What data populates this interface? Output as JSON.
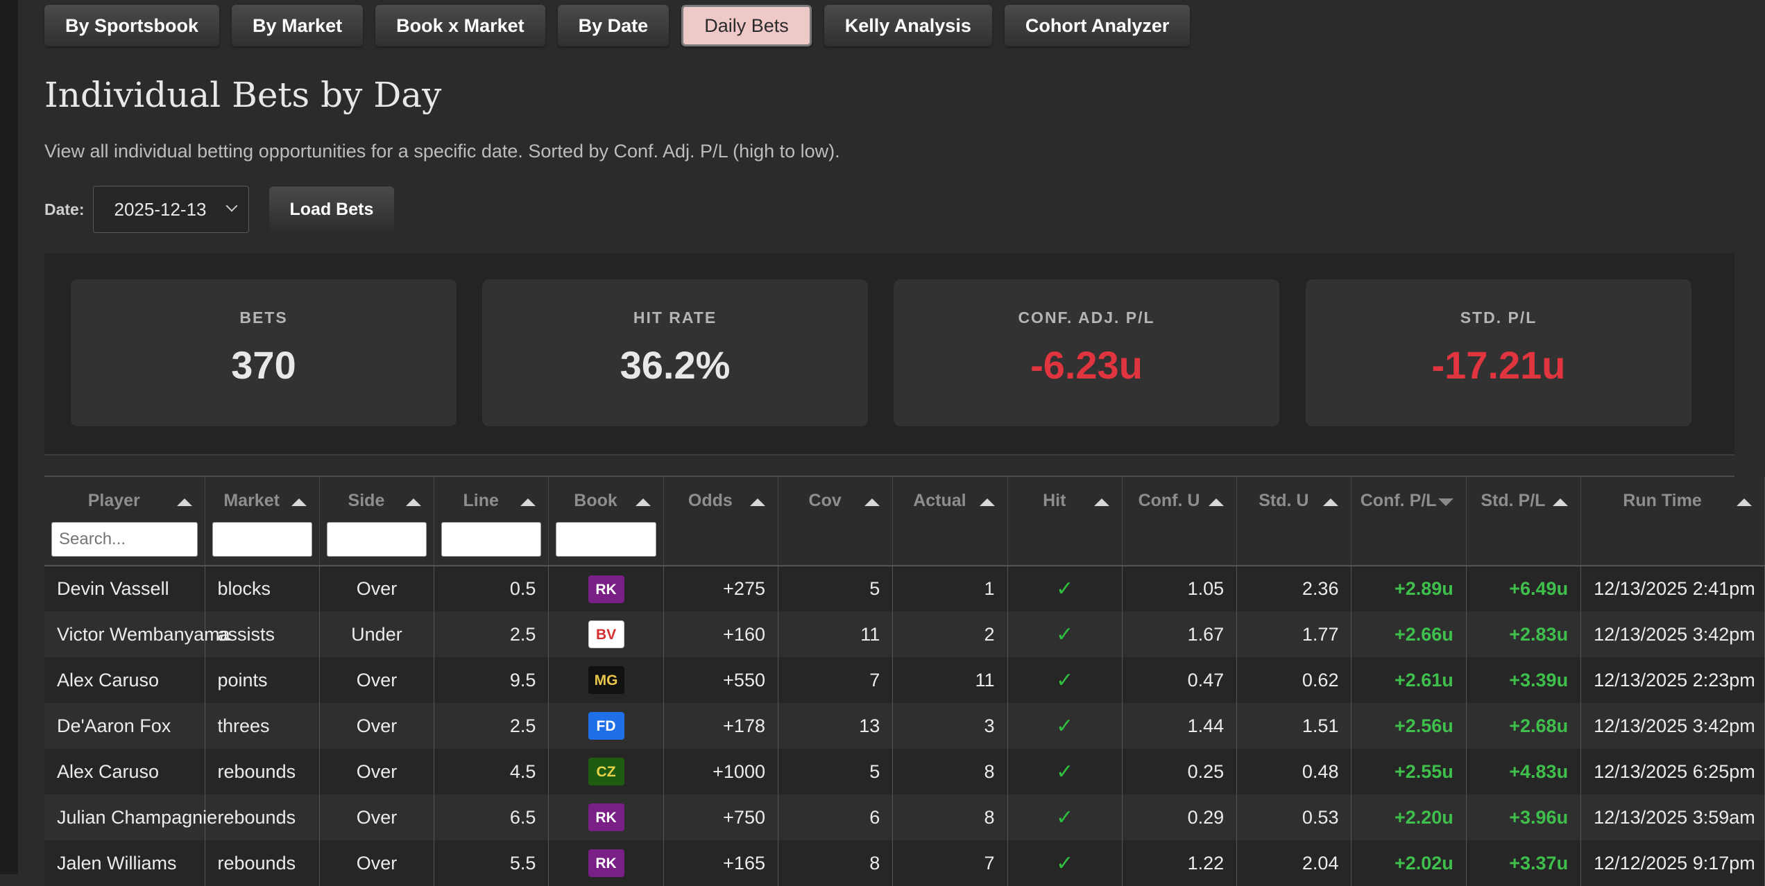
{
  "tabs": [
    {
      "label": "By Sportsbook",
      "active": false
    },
    {
      "label": "By Market",
      "active": false
    },
    {
      "label": "Book x Market",
      "active": false
    },
    {
      "label": "By Date",
      "active": false
    },
    {
      "label": "Daily Bets",
      "active": true
    },
    {
      "label": "Kelly Analysis",
      "active": false
    },
    {
      "label": "Cohort Analyzer",
      "active": false
    }
  ],
  "header": {
    "title": "Individual Bets by Day",
    "subtitle": "View all individual betting opportunities for a specific date. Sorted by Conf. Adj. P/L (high to low)."
  },
  "controls": {
    "date_label": "Date:",
    "date_value": "2025-12-13",
    "load_label": "Load Bets"
  },
  "stats": [
    {
      "label": "BETS",
      "value": "370",
      "negative": false
    },
    {
      "label": "HIT RATE",
      "value": "36.2%",
      "negative": false
    },
    {
      "label": "CONF. ADJ. P/L",
      "value": "-6.23u",
      "negative": true
    },
    {
      "label": "STD. P/L",
      "value": "-17.21u",
      "negative": true
    }
  ],
  "table": {
    "search_placeholder": "Search...",
    "columns": [
      "Player",
      "Market",
      "Side",
      "Line",
      "Book",
      "Odds",
      "Cov",
      "Actual",
      "Hit",
      "Conf. U",
      "Std. U",
      "Conf. P/L",
      "Std. P/L",
      "Run Time"
    ],
    "rows": [
      {
        "player": "Devin Vassell",
        "market": "blocks",
        "side": "Over",
        "line": "0.5",
        "book": "RK",
        "odds": "+275",
        "cov": "5",
        "actual": "1",
        "hit": "✓",
        "conf_u": "1.05",
        "std_u": "2.36",
        "conf_pl": "+2.89u",
        "std_pl": "+6.49u",
        "run_time": "12/13/2025 2:41pm"
      },
      {
        "player": "Victor Wembanyama",
        "market": "assists",
        "side": "Under",
        "line": "2.5",
        "book": "BV",
        "odds": "+160",
        "cov": "11",
        "actual": "2",
        "hit": "✓",
        "conf_u": "1.67",
        "std_u": "1.77",
        "conf_pl": "+2.66u",
        "std_pl": "+2.83u",
        "run_time": "12/13/2025 3:42pm"
      },
      {
        "player": "Alex Caruso",
        "market": "points",
        "side": "Over",
        "line": "9.5",
        "book": "MG",
        "odds": "+550",
        "cov": "7",
        "actual": "11",
        "hit": "✓",
        "conf_u": "0.47",
        "std_u": "0.62",
        "conf_pl": "+2.61u",
        "std_pl": "+3.39u",
        "run_time": "12/13/2025 2:23pm"
      },
      {
        "player": "De'Aaron Fox",
        "market": "threes",
        "side": "Over",
        "line": "2.5",
        "book": "FD",
        "odds": "+178",
        "cov": "13",
        "actual": "3",
        "hit": "✓",
        "conf_u": "1.44",
        "std_u": "1.51",
        "conf_pl": "+2.56u",
        "std_pl": "+2.68u",
        "run_time": "12/13/2025 3:42pm"
      },
      {
        "player": "Alex Caruso",
        "market": "rebounds",
        "side": "Over",
        "line": "4.5",
        "book": "CZ",
        "odds": "+1000",
        "cov": "5",
        "actual": "8",
        "hit": "✓",
        "conf_u": "0.25",
        "std_u": "0.48",
        "conf_pl": "+2.55u",
        "std_pl": "+4.83u",
        "run_time": "12/13/2025 6:25pm"
      },
      {
        "player": "Julian Champagnie",
        "market": "rebounds",
        "side": "Over",
        "line": "6.5",
        "book": "RK",
        "odds": "+750",
        "cov": "6",
        "actual": "8",
        "hit": "✓",
        "conf_u": "0.29",
        "std_u": "0.53",
        "conf_pl": "+2.20u",
        "std_pl": "+3.96u",
        "run_time": "12/13/2025 3:59am"
      },
      {
        "player": "Jalen Williams",
        "market": "rebounds",
        "side": "Over",
        "line": "5.5",
        "book": "RK",
        "odds": "+165",
        "cov": "8",
        "actual": "7",
        "hit": "✓",
        "conf_u": "1.22",
        "std_u": "2.04",
        "conf_pl": "+2.02u",
        "std_pl": "+3.37u",
        "run_time": "12/12/2025 9:17pm"
      }
    ]
  },
  "book_colors": {
    "RK": {
      "bg": "#7a1f86",
      "fg": "#ffffff",
      "border": "#7a1f86"
    },
    "BV": {
      "bg": "#ffffff",
      "fg": "#d32f2f",
      "border": "#cccccc"
    },
    "MG": {
      "bg": "#111111",
      "fg": "#e8c64a",
      "border": "#111111"
    },
    "FD": {
      "bg": "#1e6fe8",
      "fg": "#ffffff",
      "border": "#1e6fe8"
    },
    "CZ": {
      "bg": "#1f5c12",
      "fg": "#e8d44a",
      "border": "#1f5c12"
    }
  }
}
